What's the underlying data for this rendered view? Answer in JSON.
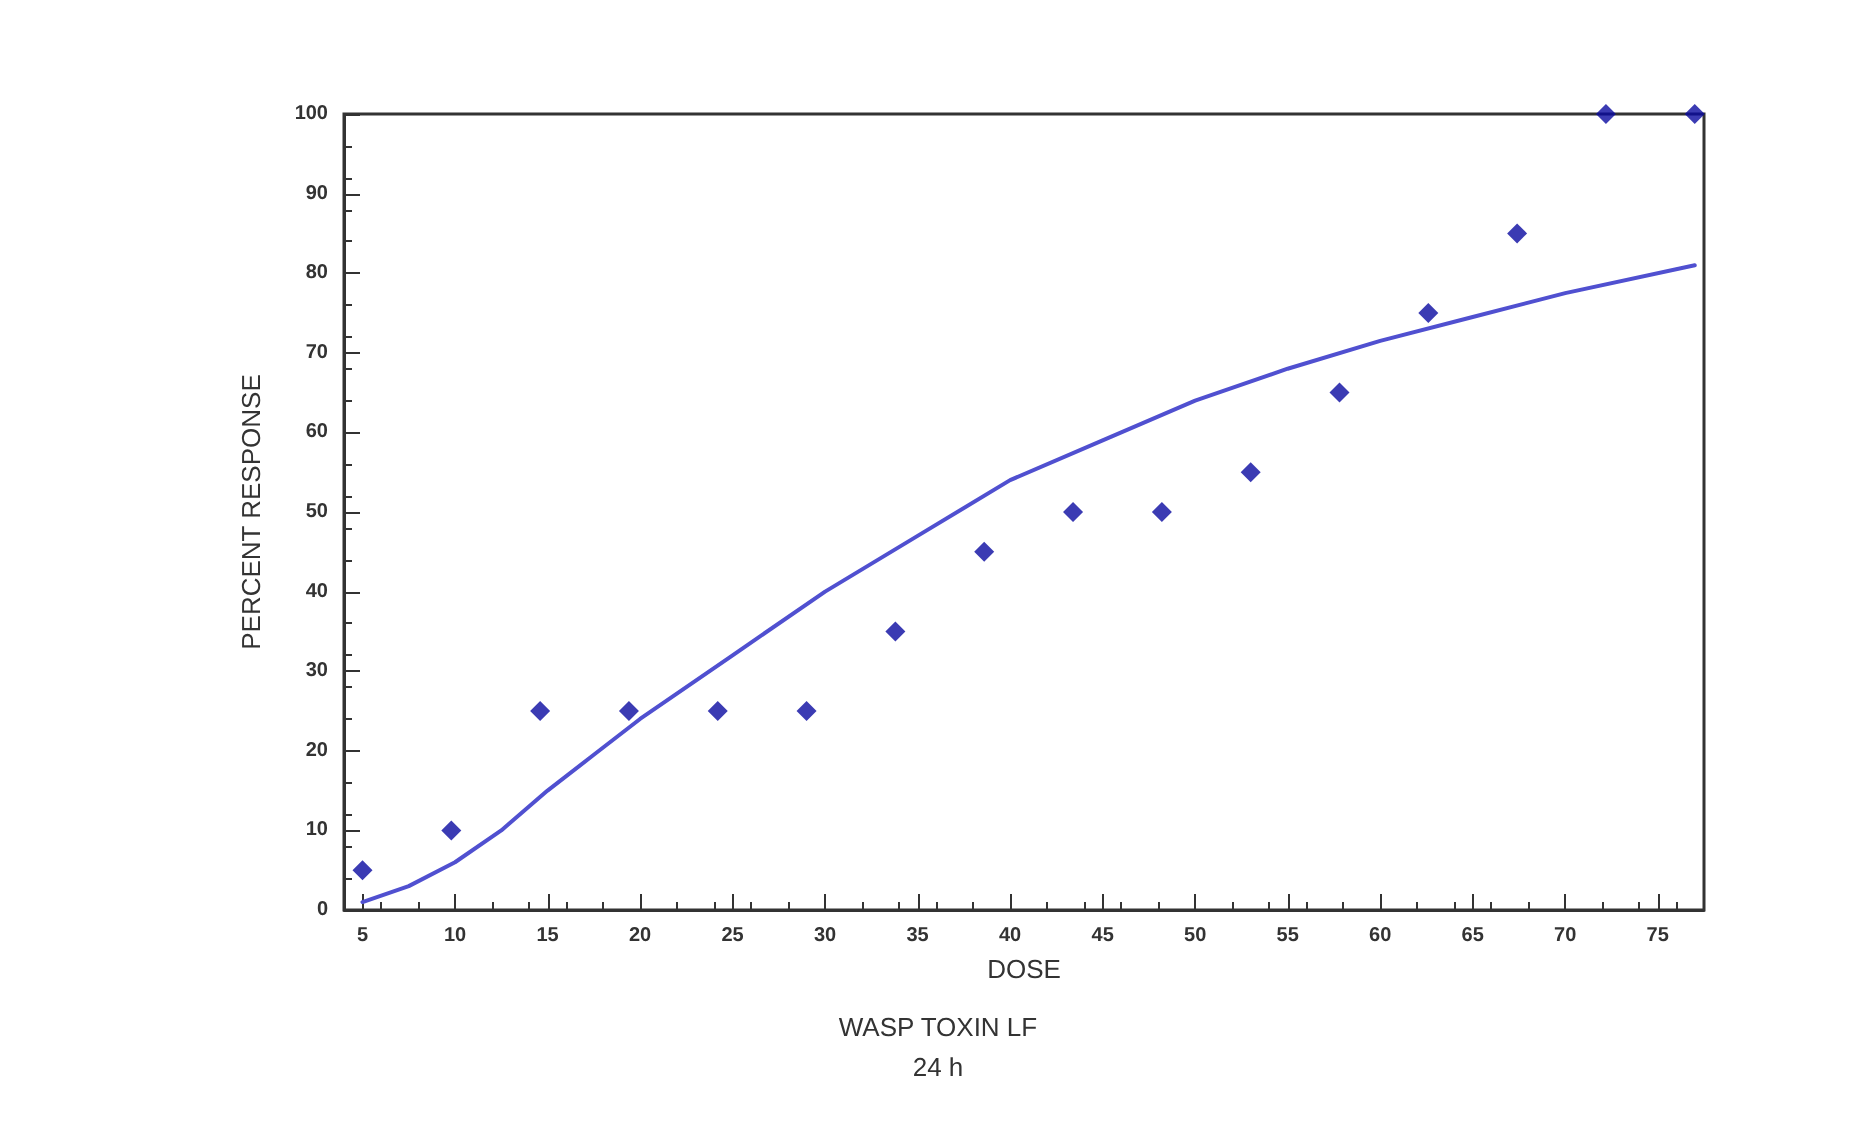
{
  "chart_data": {
    "type": "scatter",
    "title": "WASP TOXIN LF",
    "subtitle": "24 h",
    "xlabel": "DOSE",
    "ylabel": "PERCENT RESPONSE",
    "x": [
      5,
      9.8,
      14.6,
      19.4,
      24.2,
      29,
      33.8,
      38.6,
      43.4,
      48.2,
      53,
      57.8,
      62.6,
      67.4,
      72.2,
      77
    ],
    "series": [
      {
        "color": "#0a0aa0",
        "marker": "diamond",
        "values": [
          5,
          10,
          25,
          25,
          25,
          25,
          35,
          45,
          50,
          50,
          55,
          65,
          75,
          85,
          100,
          100
        ]
      },
      {
        "type": "line",
        "color": "#5050d0",
        "marker": "none",
        "line_style": "solid",
        "x": [
          5,
          7.5,
          10,
          12.5,
          15,
          17.5,
          20,
          25,
          30,
          35,
          40,
          45,
          50,
          55,
          60,
          65,
          70,
          77
        ],
        "values": [
          1,
          3,
          6,
          10,
          15,
          19.5,
          24,
          32,
          40,
          47,
          54,
          59,
          64,
          68,
          71.5,
          74.5,
          77.5,
          81
        ]
      }
    ],
    "xlim": [
      4,
      77.5
    ],
    "xticks": [
      5,
      10,
      15,
      20,
      25,
      30,
      35,
      40,
      45,
      50,
      55,
      60,
      65,
      70,
      75
    ],
    "ylim": [
      0,
      100
    ],
    "yticks": [
      0,
      10,
      20,
      30,
      40,
      50,
      60,
      70,
      80,
      90,
      100
    ],
    "grid": false
  }
}
